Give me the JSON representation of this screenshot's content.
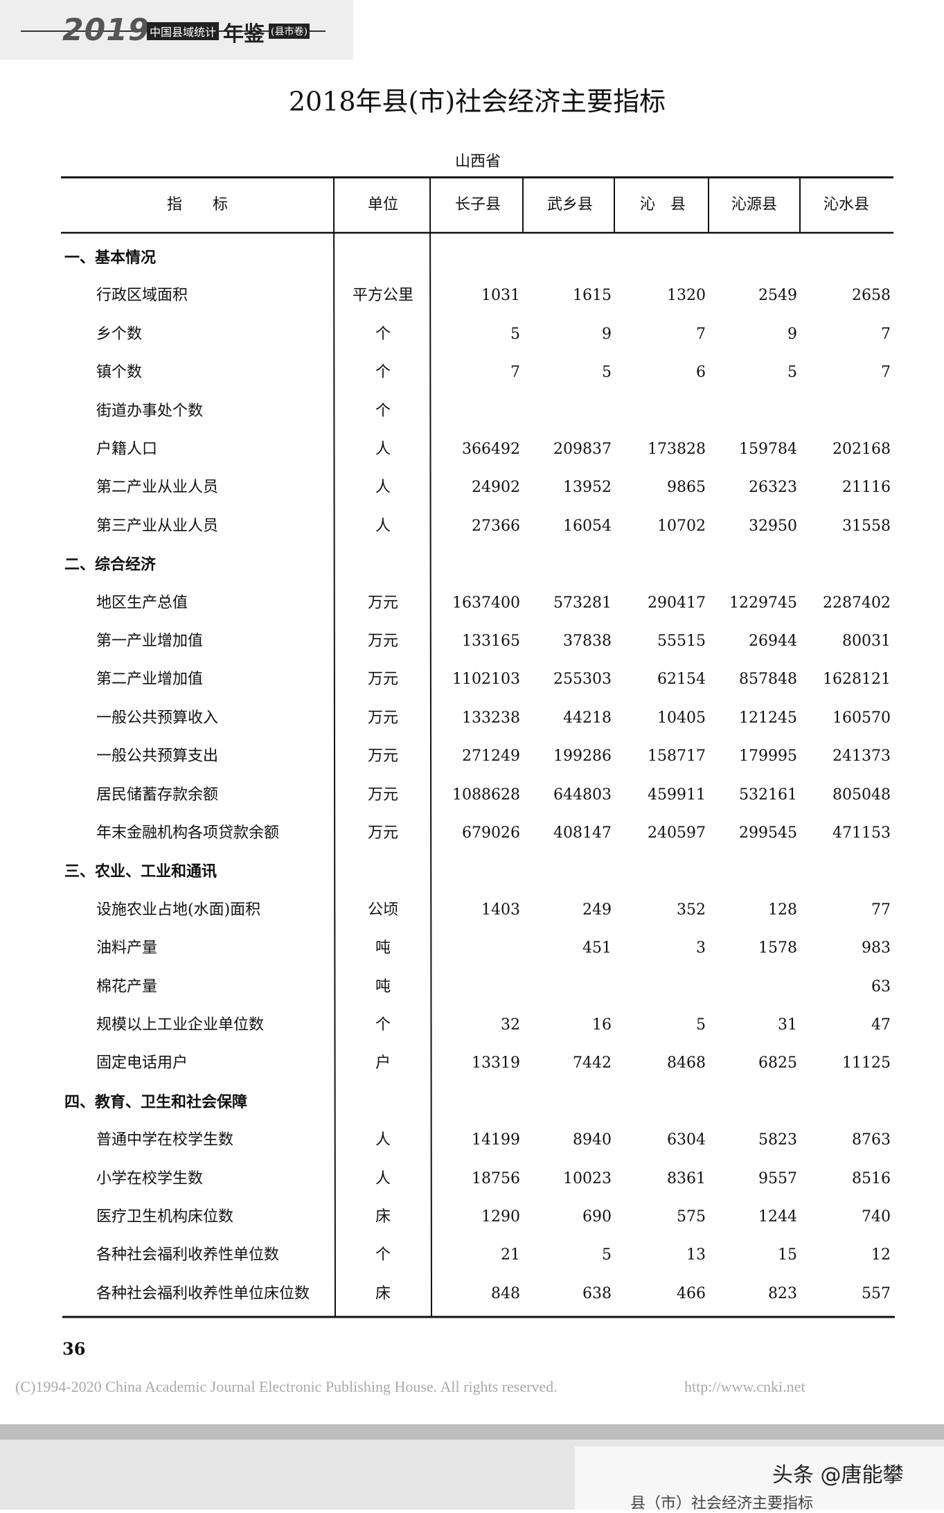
{
  "header": {
    "year": "2019",
    "series": "中国县域统计",
    "book": "年鉴",
    "volume": "(县市卷)"
  },
  "title": "2018年县(市)社会经济主要指标",
  "subtitle": "山西省",
  "table": {
    "columns": [
      "指　　标",
      "单位",
      "长子县",
      "武乡县",
      "沁　县",
      "沁源县",
      "沁水县"
    ],
    "rows": [
      [
        "一、基本情况"
      ],
      [
        "行政区域面积",
        "平方公里",
        1031,
        1615,
        1320,
        2549,
        2658
      ],
      [
        "乡个数",
        "个",
        5,
        9,
        7,
        9,
        7
      ],
      [
        "镇个数",
        "个",
        7,
        5,
        6,
        5,
        7
      ],
      [
        "街道办事处个数",
        "个",
        null,
        null,
        null,
        null,
        null
      ],
      [
        "户籍人口",
        "人",
        366492,
        209837,
        173828,
        159784,
        202168
      ],
      [
        "第二产业从业人员",
        "人",
        24902,
        13952,
        9865,
        26323,
        21116
      ],
      [
        "第三产业从业人员",
        "人",
        27366,
        16054,
        10702,
        32950,
        31558
      ],
      [
        "二、综合经济"
      ],
      [
        "地区生产总值",
        "万元",
        1637400,
        573281,
        290417,
        1229745,
        2287402
      ],
      [
        "第一产业增加值",
        "万元",
        133165,
        37838,
        55515,
        26944,
        80031
      ],
      [
        "第二产业增加值",
        "万元",
        1102103,
        255303,
        62154,
        857848,
        1628121
      ],
      [
        "一般公共预算收入",
        "万元",
        133238,
        44218,
        10405,
        121245,
        160570
      ],
      [
        "一般公共预算支出",
        "万元",
        271249,
        199286,
        158717,
        179995,
        241373
      ],
      [
        "居民储蓄存款余额",
        "万元",
        1088628,
        644803,
        459911,
        532161,
        805048
      ],
      [
        "年末金融机构各项贷款余额",
        "万元",
        679026,
        408147,
        240597,
        299545,
        471153
      ],
      [
        "三、农业、工业和通讯"
      ],
      [
        "设施农业占地(水面)面积",
        "公顷",
        1403,
        249,
        352,
        128,
        77
      ],
      [
        "油料产量",
        "吨",
        null,
        451,
        3,
        1578,
        983
      ],
      [
        "棉花产量",
        "吨",
        null,
        null,
        null,
        null,
        63
      ],
      [
        "规模以上工业企业单位数",
        "个",
        32,
        16,
        5,
        31,
        47
      ],
      [
        "固定电话用户",
        "户",
        13319,
        7442,
        8468,
        6825,
        11125
      ],
      [
        "四、教育、卫生和社会保障"
      ],
      [
        "普通中学在校学生数",
        "人",
        14199,
        8940,
        6304,
        5823,
        8763
      ],
      [
        "小学在校学生数",
        "人",
        18756,
        10023,
        8361,
        9557,
        8516
      ],
      [
        "医疗卫生机构床位数",
        "床",
        1290,
        690,
        575,
        1244,
        740
      ],
      [
        "各种社会福利收养性单位数",
        "个",
        21,
        5,
        13,
        15,
        12
      ],
      [
        "各种社会福利收养性单位床位数",
        "床",
        848,
        638,
        466,
        823,
        557
      ]
    ]
  },
  "page_number": 36,
  "copyright": "(C)1994-2020 China Academic Journal Electronic Publishing House. All rights reserved.",
  "url": "http://www.cnki.net",
  "watermark": "头条 @唐能攀",
  "next_page_header": "县（市）社会经济主要指标"
}
